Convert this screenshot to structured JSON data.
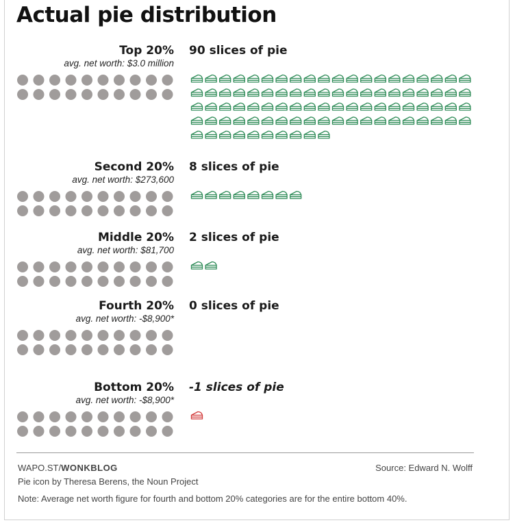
{
  "chart_data": {
    "type": "pictogram",
    "title": "Actual pie distribution",
    "dots_per_group": 20,
    "groups": [
      {
        "label": "Top 20%",
        "sub": "avg. net worth: $3.0 million",
        "slices": 90,
        "slices_label": "90 slices of pie"
      },
      {
        "label": "Second 20%",
        "sub": "avg. net worth: $273,600",
        "slices": 8,
        "slices_label": "8 slices of pie"
      },
      {
        "label": "Middle 20%",
        "sub": "avg. net worth: $81,700",
        "slices": 2,
        "slices_label": "2 slices of pie"
      },
      {
        "label": "Fourth 20%",
        "sub": "avg. net worth: -$8,900*",
        "slices": 0,
        "slices_label": "0 slices of pie"
      },
      {
        "label": "Bottom 20%",
        "sub": "avg. net worth: -$8,900*",
        "slices": -1,
        "slices_label": "-1 slices of pie"
      }
    ],
    "colors": {
      "dot": "#a09c9b",
      "slice_positive": "#2e8b57",
      "slice_negative": "#d23c3c"
    }
  },
  "footer": {
    "site_prefix": "WAPO.ST/",
    "site_brand": "WONKBLOG",
    "source": "Source: Edward N. Wolff",
    "credit": "Pie icon by Theresa Berens, the Noun Project",
    "note": "Note: Average net worth figure for fourth and bottom 20% categories are for the entire bottom 40%."
  }
}
